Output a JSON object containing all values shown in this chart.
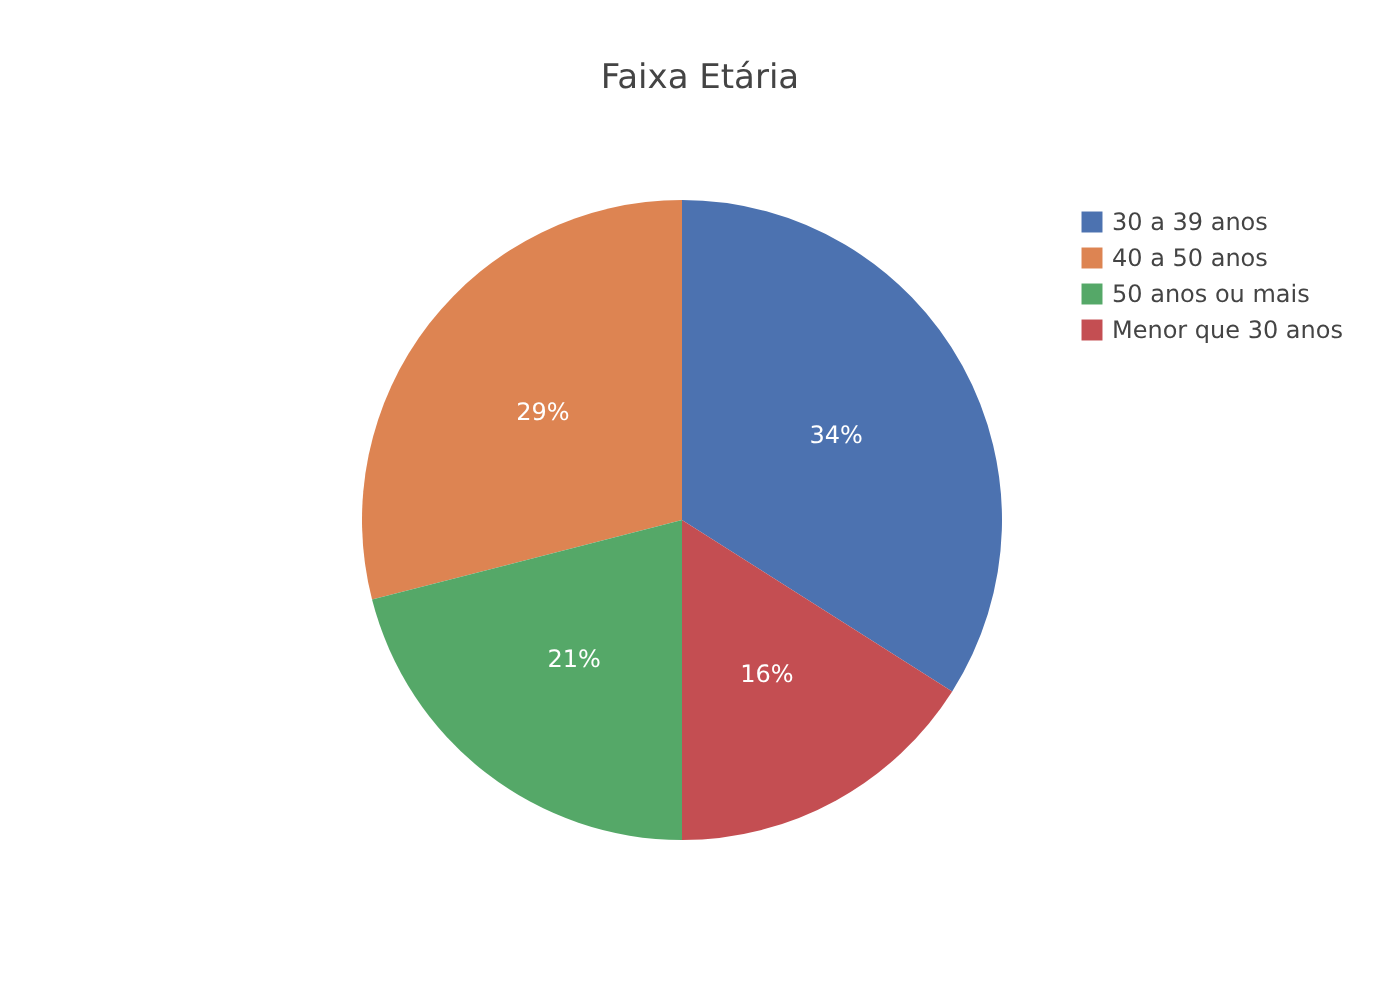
{
  "chart_data": {
    "type": "pie",
    "title": "Faixa Etária",
    "categories": [
      "30 a 39 anos",
      "40 a 50 anos",
      "50 anos ou mais",
      "Menor que 30 anos"
    ],
    "values": [
      34,
      29,
      21,
      16
    ],
    "colors": [
      "#4c72b0",
      "#dd8452",
      "#55a868",
      "#c44e52"
    ],
    "value_labels": [
      "34%",
      "29%",
      "21%",
      "16%"
    ],
    "legend": "top right"
  }
}
